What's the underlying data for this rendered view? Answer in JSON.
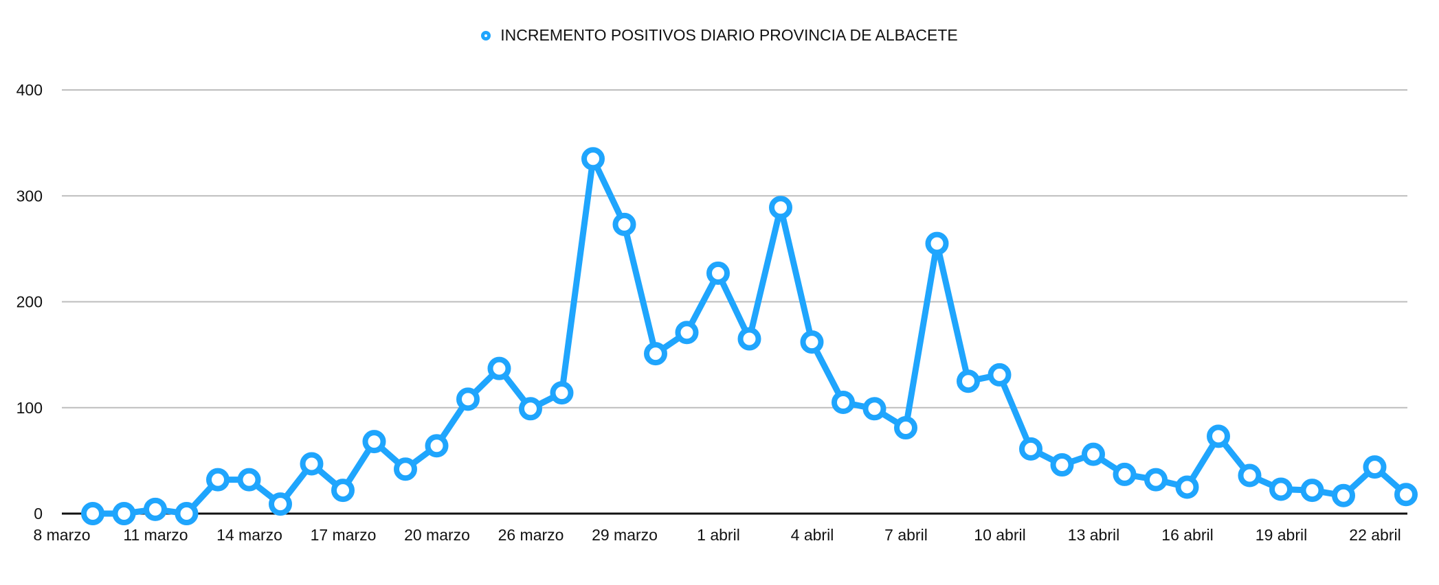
{
  "legend": {
    "label": "INCREMENTO POSITIVOS DIARIO PROVINCIA DE ALBACETE",
    "marker_icon": "ring-marker-icon"
  },
  "colors": {
    "series": "#1fa5fd",
    "grid": "#bdbdbd",
    "axis": "#111111",
    "text": "#111111"
  },
  "chart_data": {
    "type": "line",
    "title": "",
    "xlabel": "",
    "ylabel": "",
    "ylim": [
      0,
      400
    ],
    "yticks": [
      0,
      100,
      200,
      300,
      400
    ],
    "grid": true,
    "legend_position": "top",
    "x_tick_labels": [
      "8 marzo",
      "11 marzo",
      "14 marzo",
      "17 marzo",
      "20 marzo",
      "26 marzo",
      "29 marzo",
      "1 abril",
      "4 abril",
      "7 abril",
      "10 abril",
      "13 abril",
      "16 abril",
      "19 abril",
      "22 abril"
    ],
    "series": [
      {
        "name": "INCREMENTO POSITIVOS DIARIO PROVINCIA DE ALBACETE",
        "values": [
          0,
          0,
          4,
          0,
          32,
          32,
          9,
          47,
          22,
          68,
          42,
          64,
          108,
          137,
          99,
          114,
          335,
          273,
          151,
          171,
          227,
          165,
          289,
          162,
          105,
          99,
          81,
          255,
          125,
          131,
          61,
          46,
          56,
          37,
          32,
          25,
          73,
          36,
          23,
          22,
          17,
          44,
          18
        ]
      }
    ]
  }
}
